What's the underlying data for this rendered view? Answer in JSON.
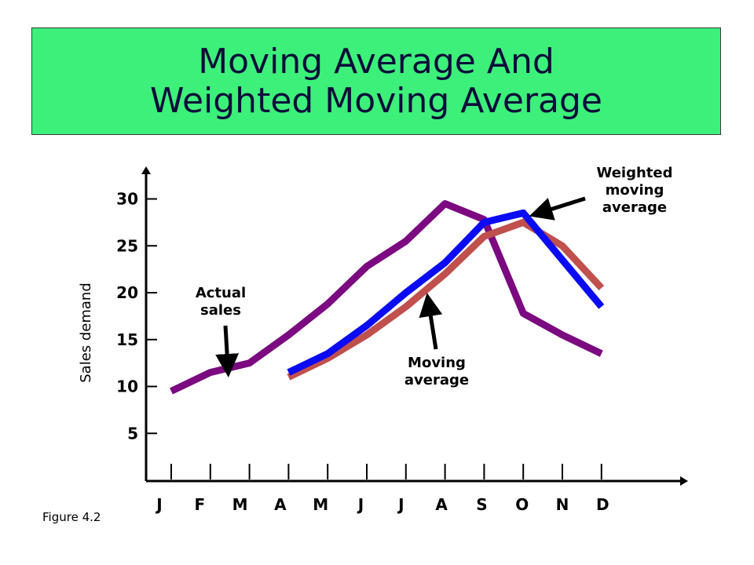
{
  "title": {
    "line1": "Moving Average And",
    "line2": "Weighted Moving Average"
  },
  "figure_label": "Figure 4.2",
  "chart_data": {
    "type": "line",
    "categories": [
      "J",
      "F",
      "M",
      "A",
      "M",
      "J",
      "J",
      "A",
      "S",
      "O",
      "N",
      "D"
    ],
    "ylabel": "Sales demand",
    "xlabel": "",
    "ylim": [
      0,
      32
    ],
    "yticks": [
      5,
      10,
      15,
      20,
      25,
      30
    ],
    "grid": false,
    "legend": "none",
    "series": [
      {
        "name": "Actual sales",
        "color": "#7b0a80",
        "values": [
          9.5,
          11.5,
          12.5,
          15.5,
          18.8,
          22.8,
          25.5,
          29.5,
          27.8,
          17.8,
          15.5,
          13.5
        ]
      },
      {
        "name": "Moving average",
        "color": "#c0504d",
        "values": [
          null,
          null,
          null,
          11,
          13,
          15.5,
          18.5,
          22,
          26,
          27.5,
          25,
          20.5
        ]
      },
      {
        "name": "Weighted moving average",
        "color": "#0a0af5",
        "values": [
          null,
          null,
          null,
          11.5,
          13.5,
          16.5,
          20,
          23.2,
          27.5,
          28.5,
          23.5,
          18.5
        ]
      }
    ],
    "annotations": [
      {
        "target": "Actual sales",
        "lines": [
          "Actual",
          "sales"
        ]
      },
      {
        "target": "Moving average",
        "lines": [
          "Moving",
          "average"
        ]
      },
      {
        "target": "Weighted moving average",
        "lines": [
          "Weighted",
          "moving",
          "average"
        ]
      }
    ]
  }
}
